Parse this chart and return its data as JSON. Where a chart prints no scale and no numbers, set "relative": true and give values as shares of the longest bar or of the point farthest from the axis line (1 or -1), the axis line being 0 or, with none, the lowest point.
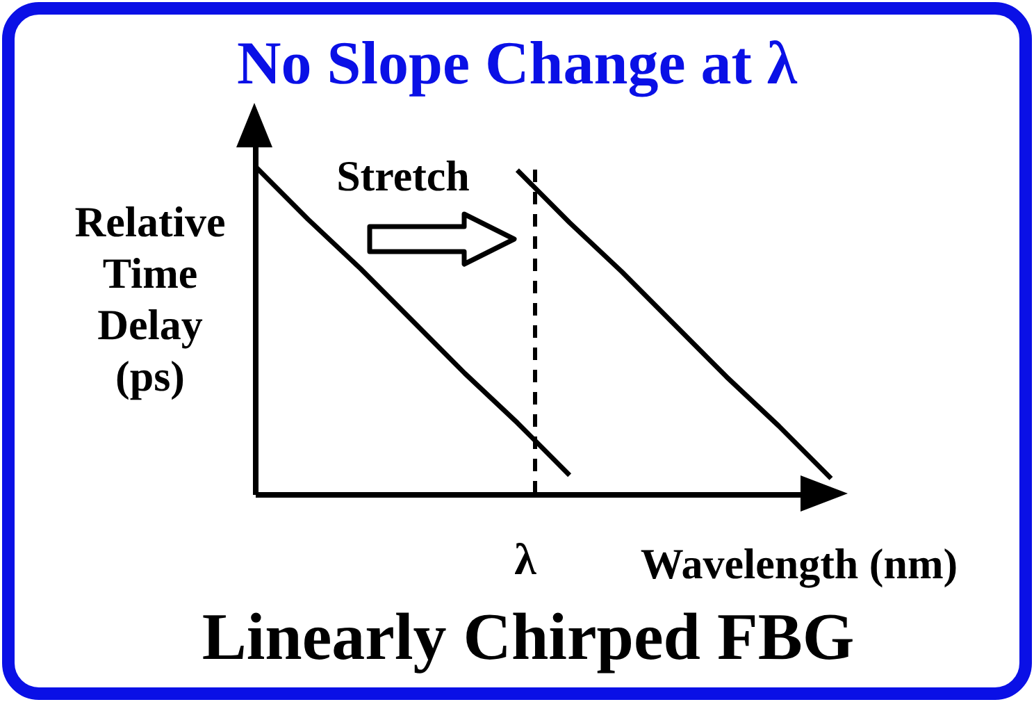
{
  "chart_data": {
    "type": "line",
    "relative": true,
    "title": "No Slope Change at λ",
    "xlabel": "Wavelength (nm)",
    "ylabel": "Relative Time Delay (ps)",
    "annotations": [
      "Stretch",
      "λ",
      "Linearly Chirped FBG"
    ],
    "categories": [
      null,
      null,
      null,
      null,
      null,
      null,
      null,
      null,
      null,
      null,
      null,
      null
    ],
    "series": [
      {
        "color": "#000000",
        "values": [
          1,
          0.84,
          0.69,
          0.53,
          0.37,
          0.22,
          0.06,
          null,
          null,
          null,
          null,
          null
        ]
      },
      {
        "color": "#000000",
        "values": [
          null,
          null,
          null,
          null,
          null,
          0.99,
          0.83,
          0.68,
          0.52,
          0.36,
          0.21,
          0.05
        ]
      }
    ],
    "grid": false,
    "marker": "none",
    "line_style": "solid"
  }
}
